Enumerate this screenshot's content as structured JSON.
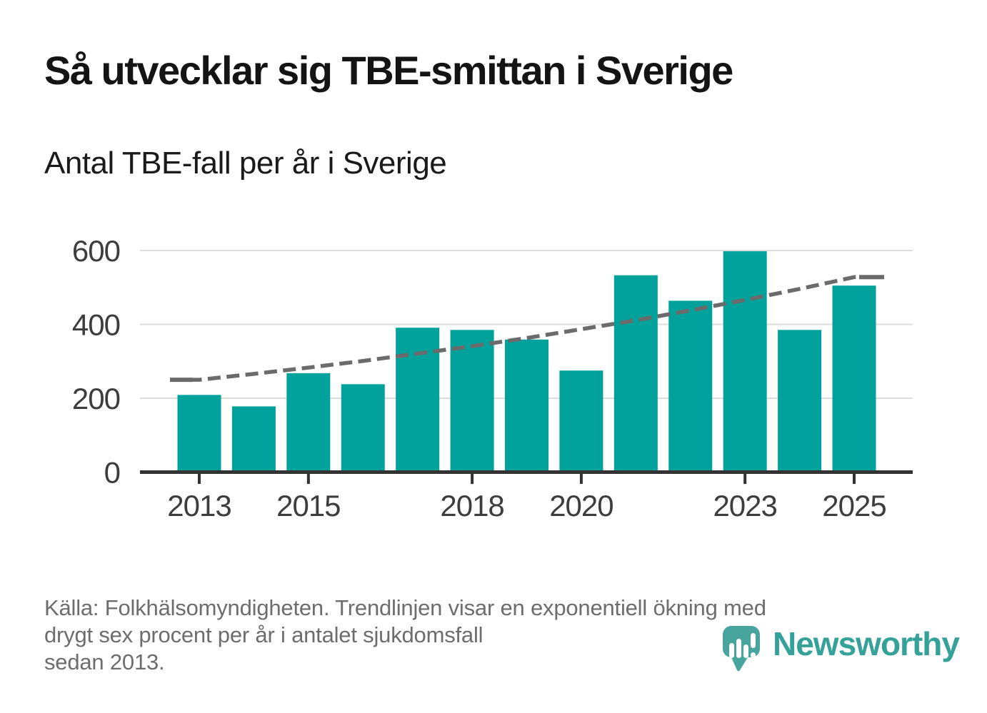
{
  "header": {
    "title": "Så utvecklar sig TBE-smittan i Sverige",
    "subtitle": "Antal TBE-fall per år i Sverige"
  },
  "chart_data": {
    "type": "bar",
    "title": "Antal TBE-fall per år i Sverige",
    "categories": [
      2013,
      2014,
      2015,
      2016,
      2017,
      2018,
      2019,
      2020,
      2021,
      2022,
      2023,
      2024,
      2025
    ],
    "series": [
      {
        "name": "Antal TBE-fall",
        "type": "bar",
        "values": [
          209,
          178,
          268,
          238,
          391,
          385,
          359,
          275,
          533,
          464,
          598,
          385,
          505
        ]
      },
      {
        "name": "Trendlinje (exponentiell ökning, drygt sex procent per år)",
        "type": "line",
        "style": "dashed",
        "values": [
          250,
          266,
          283,
          301,
          321,
          341,
          363,
          387,
          411,
          438,
          466,
          496,
          528
        ]
      }
    ],
    "ylim": [
      0,
      600
    ],
    "yticks": [
      0,
      200,
      400,
      600
    ],
    "xtick_years": [
      2013,
      2015,
      2018,
      2020,
      2023,
      2025
    ],
    "grid": true,
    "legend": "none",
    "colors": {
      "bar": "#00a29b",
      "trend": "#6b6b6b",
      "grid": "#dcdcdc",
      "axis": "#333333",
      "tick_label": "#3d3d3d"
    }
  },
  "footer": {
    "lines": [
      "Källa: Folkhälsomyndigheten. Trendlinjen visar en exponentiell ökning med",
      "drygt sex procent per år i antalet sjukdomsfall",
      "sedan 2013."
    ]
  },
  "logo": {
    "text": "Newsworthy",
    "icon": "newsworthy-speech-bubble-chart-icon",
    "icon_color": "#48a59d",
    "text_color": "#35a29a"
  }
}
